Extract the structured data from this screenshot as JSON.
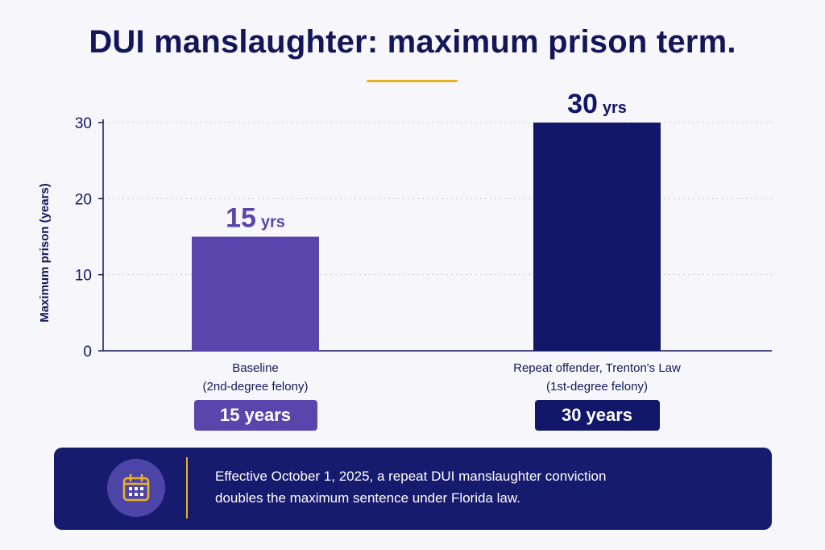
{
  "title": "DUI manslaughter: maximum prison term.",
  "colors": {
    "baseline": "#5a45ad",
    "repeat": "#131769",
    "accent": "#e9b125",
    "text": "#13175a"
  },
  "chart_data": {
    "type": "bar",
    "title": "DUI manslaughter: maximum prison term.",
    "ylabel": "Maximum prison (years)",
    "xlabel": "",
    "ylim": [
      0,
      30
    ],
    "yticks": [
      0,
      10,
      20,
      30
    ],
    "grid": true,
    "categories": [
      {
        "line1": "Baseline",
        "line2": "(2nd-degree felony)"
      },
      {
        "line1": "Repeat offender, Trenton's Law",
        "line2": "(1st-degree felony)"
      }
    ],
    "values": [
      15,
      30
    ],
    "data_labels": [
      {
        "num": "15",
        "unit": "yrs"
      },
      {
        "num": "30",
        "unit": "yrs"
      }
    ],
    "value_boxes": [
      "15 years",
      "30 years"
    ]
  },
  "banner": {
    "icon": "calendar-icon",
    "line1": "Effective October 1, 2025, a repeat DUI manslaughter conviction",
    "line2": "doubles the maximum sentence under Florida law."
  }
}
